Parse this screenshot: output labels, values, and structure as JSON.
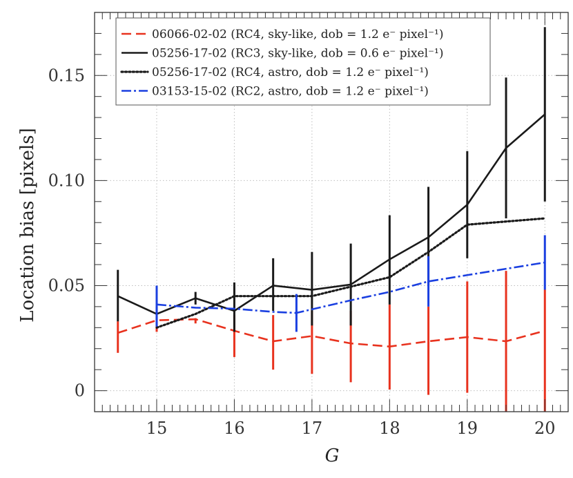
{
  "chart_data": {
    "type": "line",
    "title": "",
    "xlabel": "G",
    "ylabel": "Location bias [pixels]",
    "xlim": [
      14.2,
      20.3
    ],
    "ylim": [
      -0.01,
      0.18
    ],
    "xticks": [
      15,
      16,
      17,
      18,
      19,
      20
    ],
    "xtick_labels": [
      "15",
      "16",
      "17",
      "18",
      "19",
      "20"
    ],
    "yticks": [
      0,
      0.05,
      0.1,
      0.15
    ],
    "ytick_labels": [
      "0",
      "0.05",
      "0.10",
      "0.15"
    ],
    "grid": "dotted",
    "legend_position": "top-left",
    "series": [
      {
        "name": "06066-02-02 (RC4, sky-like, dob = 1.2 e⁻ pixel⁻¹)",
        "color": "#e8321e",
        "style": "dashed",
        "x": [
          14.5,
          15.0,
          15.5,
          16.0,
          16.5,
          17.0,
          17.5,
          18.0,
          18.5,
          19.0,
          19.5,
          20.0
        ],
        "y": [
          0.0275,
          0.0335,
          0.034,
          0.0285,
          0.0235,
          0.026,
          0.0225,
          0.021,
          0.0235,
          0.0255,
          0.0235,
          0.0285
        ],
        "err_low": [
          0.018,
          0.028,
          0.032,
          0.016,
          0.01,
          0.008,
          0.004,
          0.0005,
          -0.002,
          -0.001,
          -0.01,
          -0.01
        ],
        "err_high": [
          0.033,
          0.035,
          0.0345,
          0.036,
          0.036,
          0.038,
          0.038,
          0.041,
          0.04,
          0.052,
          0.057,
          0.048
        ]
      },
      {
        "name": "05256-17-02 (RC3, sky-like, dob = 0.6 e⁻ pixel⁻¹)",
        "color": "#1a1a1a",
        "style": "solid",
        "x": [
          14.5,
          15.0,
          15.5,
          16.0,
          16.5,
          17.0,
          17.5,
          18.0,
          18.5,
          19.0,
          19.5,
          20.0
        ],
        "y": [
          0.045,
          0.0365,
          0.044,
          0.038,
          0.05,
          0.048,
          0.0505,
          0.0625,
          0.073,
          0.0885,
          0.1155,
          0.1315
        ],
        "err_low": [
          0.033,
          0.0335,
          0.041,
          0.028,
          0.038,
          0.031,
          0.031,
          0.041,
          0.05,
          0.063,
          0.082,
          0.09
        ],
        "err_high": [
          0.0575,
          0.04,
          0.047,
          0.0515,
          0.063,
          0.066,
          0.07,
          0.0835,
          0.097,
          0.114,
          0.149,
          0.173
        ]
      },
      {
        "name": "05256-17-02 (RC4, astro, dob = 1.2 e⁻ pixel⁻¹)",
        "color": "#1a1a1a",
        "style": "dotted",
        "x": [
          15.0,
          15.5,
          16.0,
          16.5,
          17.0,
          17.5,
          18.0,
          18.5,
          19.0,
          19.5,
          20.0
        ],
        "y": [
          0.03,
          0.0365,
          0.045,
          0.045,
          0.045,
          0.0495,
          0.054,
          0.066,
          0.079,
          0.0805,
          0.082
        ],
        "err_low": [],
        "err_high": []
      },
      {
        "name": "03153-15-02 (RC2, astro, dob = 1.2 e⁻ pixel⁻¹)",
        "color": "#1a3fe0",
        "style": "dashdot",
        "x": [
          15.0,
          15.5,
          16.0,
          16.5,
          16.8,
          17.5,
          18.0,
          18.5,
          19.0,
          19.5,
          20.0
        ],
        "y": [
          0.041,
          0.0395,
          0.039,
          0.0375,
          0.037,
          0.043,
          0.047,
          0.052,
          0.055,
          0.058,
          0.061
        ],
        "err_low": [
          0.0305,
          null,
          null,
          null,
          0.028,
          null,
          null,
          0.04,
          null,
          null,
          0.048
        ],
        "err_high": [
          0.05,
          null,
          null,
          null,
          0.046,
          null,
          null,
          0.064,
          null,
          null,
          0.074
        ]
      }
    ]
  }
}
